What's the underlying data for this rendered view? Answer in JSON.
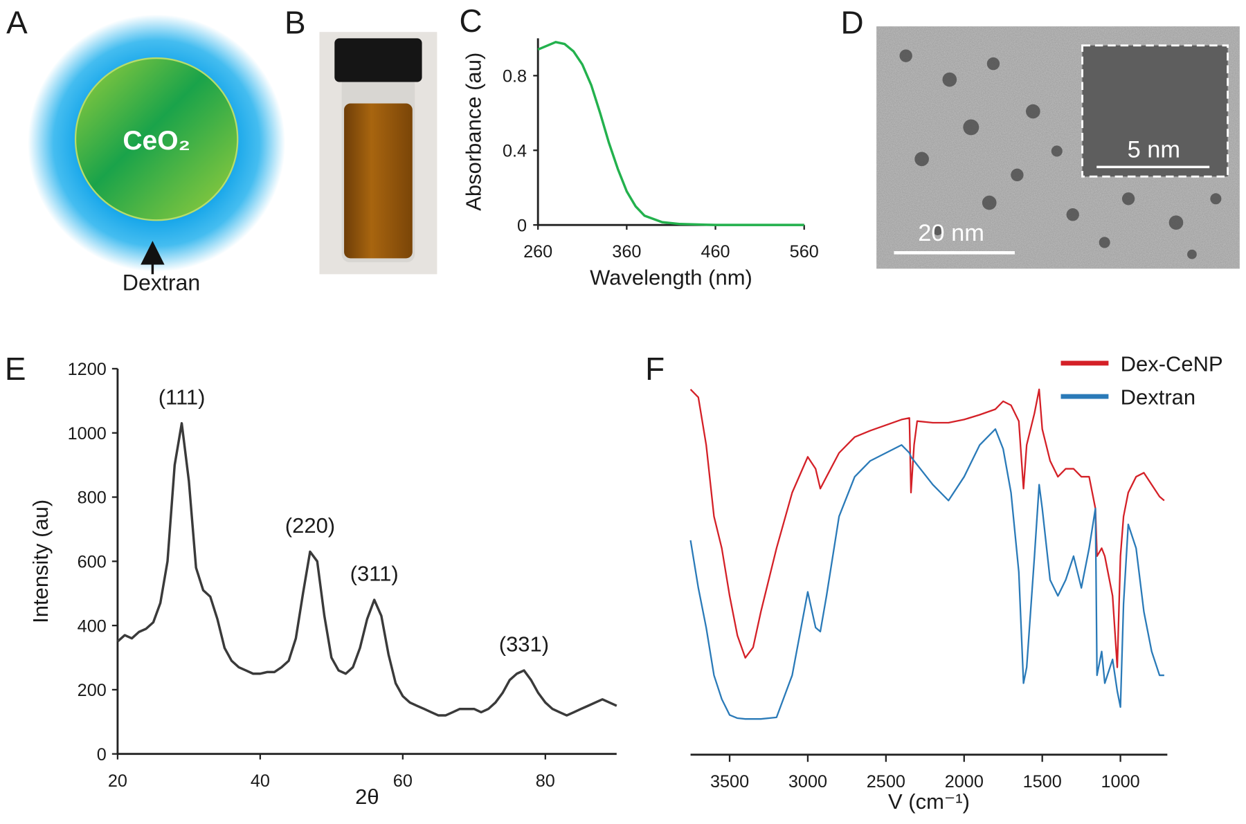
{
  "panels": {
    "A": {
      "label": "A",
      "core": "CeO₂",
      "shell": "Dextran"
    },
    "B": {
      "label": "B"
    },
    "D": {
      "label": "D",
      "scale_bar": "20 nm",
      "inset_scale_bar": "5 nm"
    }
  },
  "chart_data": [
    {
      "type": "line",
      "panel_label": "C",
      "xlabel": "Wavelength (nm)",
      "ylabel": "Absorbance (au)",
      "color": "#23b14d",
      "x": [
        260,
        270,
        280,
        290,
        300,
        310,
        320,
        330,
        340,
        350,
        360,
        370,
        380,
        400,
        420,
        460,
        500,
        560
      ],
      "values": [
        0.94,
        0.96,
        0.98,
        0.97,
        0.93,
        0.86,
        0.75,
        0.6,
        0.44,
        0.3,
        0.18,
        0.1,
        0.05,
        0.015,
        0.005,
        0,
        0,
        0
      ],
      "xlim": [
        260,
        560
      ],
      "xticks": [
        260,
        360,
        460,
        560
      ],
      "ylim": [
        0,
        1.0
      ],
      "yticks": [
        0,
        0.4,
        0.8
      ],
      "grid": false
    },
    {
      "type": "line",
      "panel_label": "E",
      "xlabel": "2θ",
      "ylabel": "Intensity (au)",
      "color": "#3a3a3a",
      "x": [
        20,
        21,
        22,
        23,
        24,
        25,
        26,
        27,
        28,
        29,
        30,
        31,
        32,
        33,
        34,
        35,
        36,
        37,
        38,
        39,
        40,
        41,
        42,
        43,
        44,
        45,
        46,
        47,
        48,
        49,
        50,
        51,
        52,
        53,
        54,
        55,
        56,
        57,
        58,
        59,
        60,
        61,
        62,
        63,
        64,
        65,
        66,
        67,
        68,
        69,
        70,
        71,
        72,
        73,
        74,
        75,
        76,
        77,
        78,
        79,
        80,
        81,
        82,
        83,
        84,
        85,
        86,
        87,
        88,
        89,
        90
      ],
      "values": [
        350,
        370,
        360,
        380,
        390,
        410,
        470,
        600,
        900,
        1030,
        850,
        580,
        510,
        490,
        420,
        330,
        290,
        270,
        260,
        250,
        250,
        255,
        255,
        270,
        290,
        360,
        500,
        630,
        600,
        430,
        300,
        260,
        250,
        270,
        330,
        420,
        480,
        430,
        310,
        220,
        180,
        160,
        150,
        140,
        130,
        120,
        120,
        130,
        140,
        140,
        140,
        130,
        140,
        160,
        190,
        230,
        250,
        260,
        230,
        190,
        160,
        140,
        130,
        120,
        130,
        140,
        150,
        160,
        170,
        160,
        150
      ],
      "peaks": [
        {
          "label": "(111)",
          "x": 29,
          "y": 1030
        },
        {
          "label": "(220)",
          "x": 47,
          "y": 630
        },
        {
          "label": "(311)",
          "x": 56,
          "y": 480
        },
        {
          "label": "(331)",
          "x": 77,
          "y": 260
        }
      ],
      "xlim": [
        20,
        90
      ],
      "xticks": [
        20,
        40,
        60,
        80
      ],
      "ylim": [
        0,
        1200
      ],
      "yticks": [
        0,
        200,
        400,
        600,
        800,
        1000,
        1200
      ],
      "grid": false
    },
    {
      "type": "line",
      "panel_label": "F",
      "xlabel": "V (cm⁻¹)",
      "legend": "top-right",
      "x": [
        3750,
        3700,
        3650,
        3600,
        3550,
        3500,
        3450,
        3400,
        3350,
        3300,
        3200,
        3100,
        3000,
        2950,
        2920,
        2880,
        2800,
        2700,
        2600,
        2500,
        2400,
        2350,
        2340,
        2320,
        2300,
        2200,
        2100,
        2000,
        1900,
        1800,
        1750,
        1700,
        1650,
        1620,
        1600,
        1550,
        1520,
        1500,
        1450,
        1400,
        1350,
        1300,
        1250,
        1200,
        1160,
        1150,
        1120,
        1100,
        1050,
        1020,
        1000,
        980,
        950,
        900,
        850,
        800,
        750,
        720
      ],
      "series": [
        {
          "name": "Dex-CeNP",
          "color": "#d42027",
          "values": [
            460,
            450,
            390,
            300,
            260,
            200,
            150,
            122,
            135,
            180,
            260,
            330,
            375,
            360,
            335,
            350,
            380,
            400,
            408,
            415,
            422,
            424,
            330,
            390,
            420,
            418,
            418,
            422,
            428,
            435,
            445,
            440,
            420,
            335,
            390,
            430,
            460,
            410,
            370,
            350,
            360,
            360,
            350,
            350,
            310,
            250,
            260,
            250,
            200,
            110,
            250,
            300,
            330,
            350,
            355,
            340,
            325,
            320
          ]
        },
        {
          "name": "Dextran",
          "color": "#2a7ab8",
          "values": [
            270,
            210,
            160,
            100,
            70,
            50,
            46,
            45,
            45,
            45,
            47,
            100,
            205,
            160,
            155,
            200,
            300,
            350,
            370,
            380,
            390,
            380,
            375,
            370,
            365,
            340,
            320,
            350,
            390,
            410,
            385,
            330,
            230,
            90,
            110,
            250,
            340,
            310,
            220,
            200,
            220,
            250,
            210,
            260,
            310,
            100,
            130,
            90,
            120,
            80,
            60,
            190,
            290,
            260,
            180,
            130,
            100,
            100
          ]
        }
      ],
      "xlim": [
        3750,
        700
      ],
      "xticks": [
        3500,
        3000,
        2500,
        2000,
        1500,
        1000
      ],
      "ylim": [
        0,
        470
      ],
      "grid": false
    }
  ]
}
